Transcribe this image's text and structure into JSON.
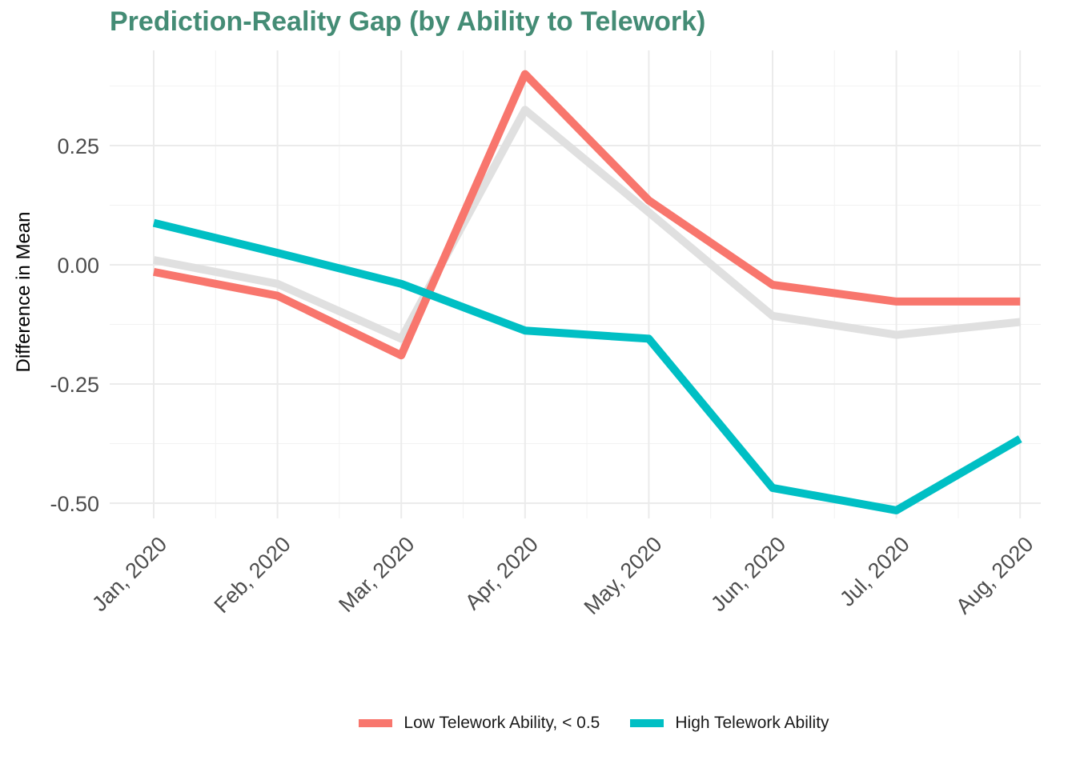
{
  "chart_data": {
    "type": "line",
    "title": "Prediction-Reality Gap (by Ability to Telework)",
    "xlabel": "",
    "ylabel": "Difference in Mean",
    "categories": [
      "Jan, 2020",
      "Feb, 2020",
      "Mar, 2020",
      "Apr, 2020",
      "May, 2020",
      "Jun, 2020",
      "Jul, 2020",
      "Aug, 2020"
    ],
    "yticks": [
      0.25,
      0.0,
      -0.25,
      -0.5
    ],
    "ytick_labels": [
      "0.25",
      "0.00",
      "-0.25",
      "-0.50"
    ],
    "ylim": [
      -0.53,
      0.41
    ],
    "grid": true,
    "legend_position": "bottom",
    "series": [
      {
        "name": "",
        "color": "#E0E0E0",
        "values": [
          0.01,
          -0.04,
          -0.155,
          0.325,
          0.11,
          -0.107,
          -0.147,
          -0.12
        ]
      },
      {
        "name": "Low Telework Ability, < 0.5",
        "color": "#F8766D",
        "values": [
          -0.015,
          -0.065,
          -0.19,
          0.4,
          0.135,
          -0.042,
          -0.077,
          -0.077
        ]
      },
      {
        "name": "High Telework Ability",
        "color": "#00BFC4",
        "values": [
          0.088,
          0.025,
          -0.04,
          -0.138,
          -0.155,
          -0.468,
          -0.515,
          -0.365
        ]
      }
    ]
  }
}
